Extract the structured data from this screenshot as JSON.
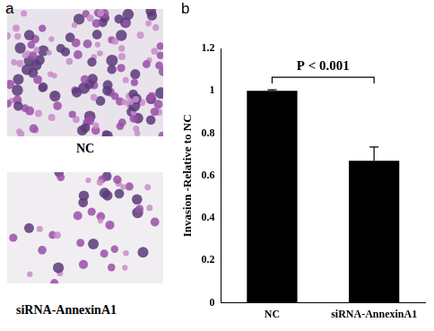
{
  "panel_labels": [
    "a",
    "b"
  ],
  "images": [
    {
      "label": "NC"
    },
    {
      "label": "siRNA-AnnexinA1"
    }
  ],
  "chart_data": {
    "type": "bar",
    "categories": [
      "NC",
      "siRNA-AnnexinA1"
    ],
    "values": [
      1.0,
      0.67
    ],
    "errors": [
      0.005,
      0.065
    ],
    "color": "#000000",
    "y_label": "Invasion -Relative to NC",
    "annotation": "P < 0.001",
    "ylim": [
      0,
      1.2
    ],
    "yticks": [
      0,
      0.2,
      0.4,
      0.6,
      0.8,
      1,
      1.2
    ],
    "grid": false
  }
}
